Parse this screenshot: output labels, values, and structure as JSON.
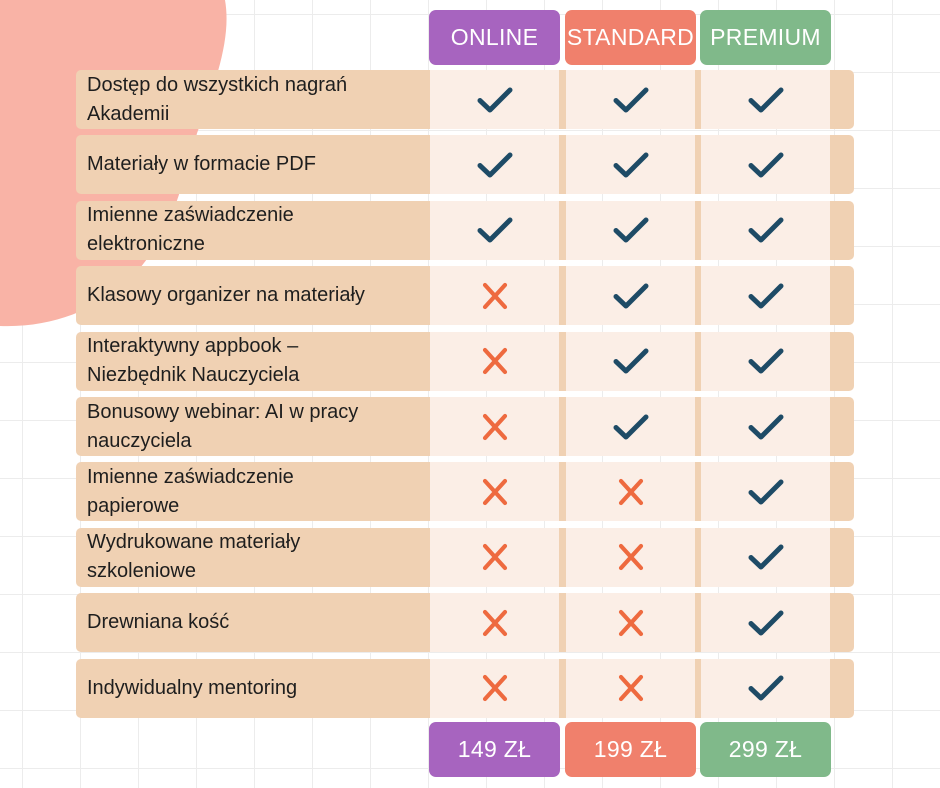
{
  "colors": {
    "online": "#a764bf",
    "standard": "#f0806c",
    "premium": "#80b98a",
    "row_bg": "#f0d1b3",
    "cell_bg": "#fbeee6",
    "check": "#1e4b66",
    "cross": "#ee6a3f",
    "blob": "#f9b3a6"
  },
  "plans": [
    {
      "name": "ONLINE",
      "price": "149 ZŁ"
    },
    {
      "name": "STANDARD",
      "price": "199 ZŁ"
    },
    {
      "name": "PREMIUM",
      "price": "299 ZŁ"
    }
  ],
  "features": [
    {
      "label": [
        "Dostęp do wszystkich nagrań",
        "Akademii"
      ],
      "availability": [
        "check",
        "check",
        "check"
      ]
    },
    {
      "label": [
        "Materiały w formacie PDF"
      ],
      "availability": [
        "check",
        "check",
        "check"
      ]
    },
    {
      "label": [
        "Imienne zaświadczenie",
        "elektroniczne"
      ],
      "availability": [
        "check",
        "check",
        "check"
      ]
    },
    {
      "label": [
        "Klasowy organizer na materiały"
      ],
      "availability": [
        "cross",
        "check",
        "check"
      ]
    },
    {
      "label": [
        "Interaktywny appbook –",
        "Niezbędnik Nauczyciela"
      ],
      "availability": [
        "cross",
        "check",
        "check"
      ]
    },
    {
      "label": [
        "Bonusowy webinar: AI w pracy",
        "nauczyciela"
      ],
      "availability": [
        "cross",
        "check",
        "check"
      ]
    },
    {
      "label": [
        "Imienne zaświadczenie",
        "papierowe"
      ],
      "availability": [
        "cross",
        "cross",
        "check"
      ]
    },
    {
      "label": [
        "Wydrukowane materiały",
        "szkoleniowe"
      ],
      "availability": [
        "cross",
        "cross",
        "check"
      ]
    },
    {
      "label": [
        "Drewniana kość"
      ],
      "availability": [
        "cross",
        "cross",
        "check"
      ]
    },
    {
      "label": [
        "Indywidualny mentoring"
      ],
      "availability": [
        "cross",
        "cross",
        "check"
      ]
    }
  ]
}
